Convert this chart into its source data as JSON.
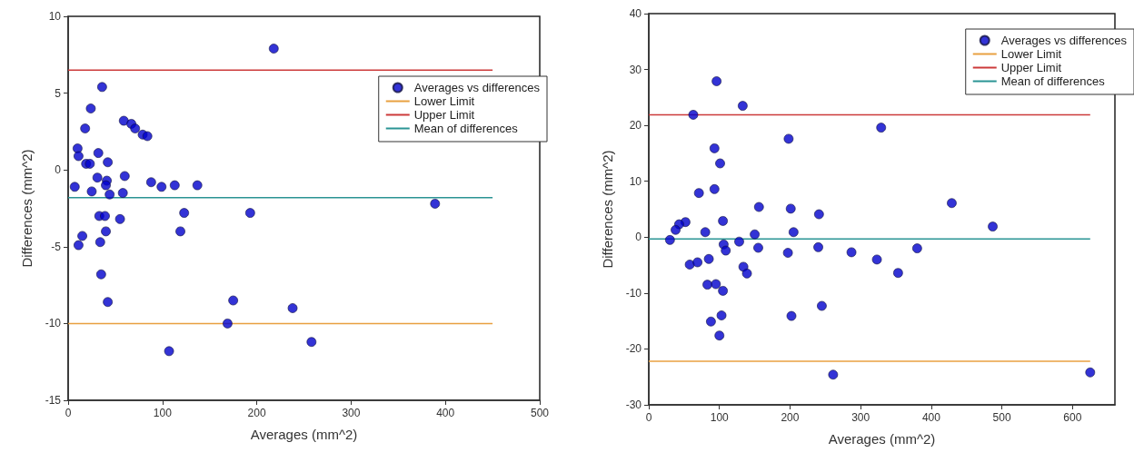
{
  "chart_data": [
    {
      "type": "scatter",
      "xlabel": "Averages (mm^2)",
      "ylabel": "Differences (mm^2)",
      "xlim": [
        0,
        500
      ],
      "xticks": [
        0,
        100,
        200,
        300,
        400,
        500
      ],
      "ylim": [
        -15,
        10
      ],
      "yticks": [
        -15,
        -10,
        -5,
        0,
        5,
        10
      ],
      "grid": false,
      "legend": "top right",
      "series": [
        {
          "name": "Averages vs differences",
          "marker": "circle",
          "color": "#0000cc",
          "x": [
            218,
            36,
            24,
            18,
            59,
            67,
            71,
            79,
            84,
            10,
            11,
            32,
            19,
            23,
            42,
            7,
            31,
            41,
            40,
            60,
            25,
            44,
            58,
            88,
            99,
            113,
            137,
            33,
            39,
            55,
            123,
            193,
            15,
            11,
            40,
            34,
            119,
            35,
            42,
            175,
            238,
            169,
            258,
            107,
            389
          ],
          "values": [
            7.9,
            5.4,
            4.0,
            2.7,
            3.2,
            3.0,
            2.7,
            2.3,
            2.2,
            1.4,
            0.9,
            1.1,
            0.4,
            0.4,
            0.5,
            -1.1,
            -0.5,
            -0.7,
            -1.0,
            -0.4,
            -1.4,
            -1.6,
            -1.5,
            -0.8,
            -1.1,
            -1.0,
            -1.0,
            -3.0,
            -3.0,
            -3.2,
            -2.8,
            -2.8,
            -4.3,
            -4.9,
            -4.0,
            -4.7,
            -4.0,
            -6.8,
            -8.6,
            -8.5,
            -9.0,
            -10.0,
            -11.2,
            -11.8,
            -2.2
          ]
        },
        {
          "name": "Lower Limit",
          "type": "line",
          "marker": "none",
          "color": "#e8a040",
          "x": [
            0,
            450
          ],
          "values": [
            -10,
            -10
          ]
        },
        {
          "name": "Upper Limit",
          "type": "line",
          "marker": "none",
          "color": "#cc3a3a",
          "x": [
            0,
            450
          ],
          "values": [
            6.5,
            6.5
          ]
        },
        {
          "name": "Mean of differences",
          "type": "line",
          "marker": "none",
          "color": "#2a9494",
          "x": [
            0,
            450
          ],
          "values": [
            -1.8,
            -1.8
          ]
        }
      ]
    },
    {
      "type": "scatter",
      "xlabel": "Averages (mm^2)",
      "ylabel": "Differences (mm^2)",
      "xlim": [
        0,
        660
      ],
      "xticks": [
        0,
        100,
        200,
        300,
        400,
        500,
        600
      ],
      "ylim": [
        -30,
        40
      ],
      "yticks": [
        -30,
        -20,
        -10,
        0,
        10,
        20,
        30,
        40
      ],
      "grid": false,
      "legend": "top right",
      "series": [
        {
          "name": "Averages vs differences",
          "marker": "circle",
          "color": "#0000cc",
          "x": [
            96,
            133,
            63,
            329,
            198,
            93,
            101,
            93,
            71,
            156,
            201,
            241,
            105,
            52,
            43,
            38,
            80,
            205,
            150,
            30,
            128,
            106,
            109,
            155,
            197,
            240,
            287,
            323,
            85,
            58,
            69,
            134,
            139,
            83,
            95,
            105,
            245,
            202,
            103,
            88,
            100,
            261,
            429,
            487,
            380,
            353,
            625
          ],
          "values": [
            27.9,
            23.5,
            21.9,
            19.6,
            17.6,
            15.9,
            13.2,
            8.6,
            7.9,
            5.4,
            5.1,
            4.1,
            2.9,
            2.7,
            2.3,
            1.3,
            0.9,
            0.9,
            0.5,
            -0.5,
            -0.8,
            -1.3,
            -2.4,
            -1.9,
            -2.8,
            -1.8,
            -2.7,
            -4.0,
            -3.9,
            -4.9,
            -4.5,
            -5.3,
            -6.5,
            -8.5,
            -8.4,
            -9.6,
            -12.3,
            -14.1,
            -14.0,
            -15.1,
            -17.6,
            -24.6,
            6.1,
            1.9,
            -2.0,
            -6.4,
            -24.2
          ]
        },
        {
          "name": "Lower Limit",
          "type": "line",
          "marker": "none",
          "color": "#e8a040",
          "x": [
            0,
            625
          ],
          "values": [
            -22.2,
            -22.2
          ]
        },
        {
          "name": "Upper Limit",
          "type": "line",
          "marker": "none",
          "color": "#cc3a3a",
          "x": [
            0,
            625
          ],
          "values": [
            21.9,
            21.9
          ]
        },
        {
          "name": "Mean of differences",
          "type": "line",
          "marker": "none",
          "color": "#2a9494",
          "x": [
            0,
            625
          ],
          "values": [
            -0.3,
            -0.3
          ]
        }
      ]
    }
  ]
}
